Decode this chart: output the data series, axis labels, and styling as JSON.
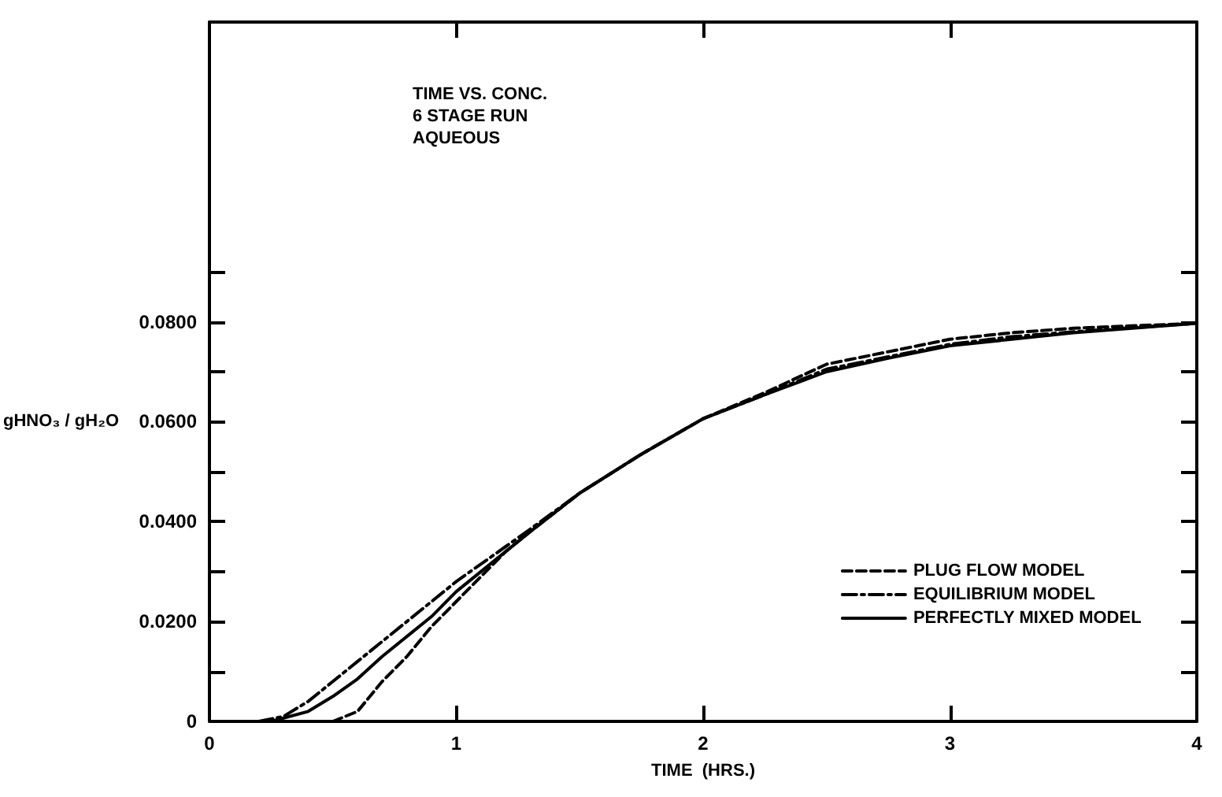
{
  "chart_data": {
    "type": "line",
    "title": "TIME VS. CONC.\n6 STAGE RUN\nAQUEOUS",
    "xlabel": "TIME  (HRS.)",
    "ylabel": "gHNO₃ / gH₂O",
    "xlim": [
      0,
      4
    ],
    "xticks": [
      0,
      1,
      2,
      3,
      4
    ],
    "ylim": [
      0,
      0.14
    ],
    "yticks": [
      {
        "value": 0,
        "label": "0"
      },
      {
        "value": 0.01,
        "label": null
      },
      {
        "value": 0.02,
        "label": "0.0200"
      },
      {
        "value": 0.03,
        "label": null
      },
      {
        "value": 0.04,
        "label": "0.0400"
      },
      {
        "value": 0.05,
        "label": null
      },
      {
        "value": 0.06,
        "label": "0.0600"
      },
      {
        "value": 0.07,
        "label": null
      },
      {
        "value": 0.08,
        "label": "0.0800"
      },
      {
        "value": 0.09,
        "label": null
      }
    ],
    "grid": false,
    "legend": "bottom right",
    "marker": "none",
    "series": [
      {
        "name": "PLUG FLOW MODEL",
        "color": "#000000",
        "line_style": "dashed",
        "x": [
          0.5,
          0.6,
          0.7,
          0.8,
          0.9,
          1.0,
          1.2,
          1.3,
          1.5,
          1.75,
          2.0,
          2.25,
          2.5,
          2.75,
          3.0,
          3.25,
          3.5,
          4.0
        ],
        "values": [
          0,
          0.002,
          0.008,
          0.013,
          0.019,
          0.024,
          0.034,
          0.038,
          0.0457,
          0.0535,
          0.0606,
          0.0658,
          0.0715,
          0.074,
          0.0765,
          0.0778,
          0.0787,
          0.0797
        ]
      },
      {
        "name": "EQUILIBRIUM MODEL",
        "color": "#000000",
        "line_style": "dashdot",
        "x": [
          0.2,
          0.3,
          0.4,
          0.5,
          0.6,
          0.7,
          0.8,
          0.9,
          1.0,
          1.2,
          1.3,
          1.5,
          1.75,
          2.0,
          2.25,
          2.5,
          2.75,
          3.0,
          3.25,
          3.5,
          4.0
        ],
        "values": [
          0,
          0.001,
          0.004,
          0.008,
          0.012,
          0.016,
          0.02,
          0.024,
          0.028,
          0.035,
          0.0385,
          0.0457,
          0.0535,
          0.0606,
          0.0654,
          0.0705,
          0.073,
          0.0755,
          0.077,
          0.078,
          0.0797
        ]
      },
      {
        "name": "PERFECTLY MIXED MODEL",
        "color": "#000000",
        "line_style": "solid",
        "x": [
          0.25,
          0.4,
          0.5,
          0.6,
          0.7,
          0.8,
          0.9,
          1.0,
          1.2,
          1.3,
          1.5,
          1.75,
          2.0,
          2.25,
          2.5,
          2.75,
          3.0,
          3.25,
          3.5,
          4.0
        ],
        "values": [
          0,
          0.002,
          0.005,
          0.0085,
          0.013,
          0.017,
          0.021,
          0.026,
          0.034,
          0.038,
          0.0457,
          0.0535,
          0.0606,
          0.0654,
          0.07,
          0.0727,
          0.0752,
          0.0765,
          0.0778,
          0.0797
        ]
      }
    ]
  }
}
